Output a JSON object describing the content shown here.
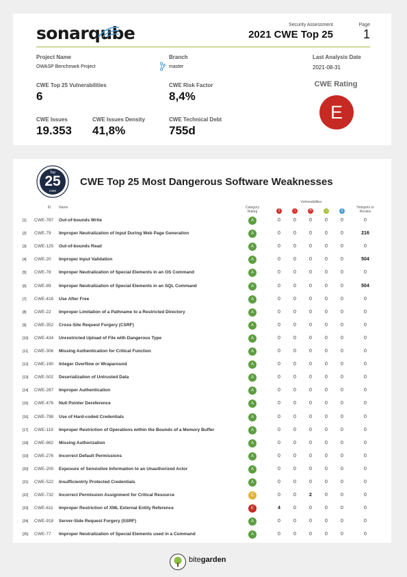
{
  "header": {
    "logo_text": "sonarqube",
    "report_subtitle": "Security Assessment",
    "report_title": "2021 CWE Top 25",
    "page_label": "Page",
    "page_number": "1"
  },
  "project": {
    "name_label": "Project Name",
    "name": "OWASP Benchmark Project",
    "branch_label": "Branch",
    "branch": "master",
    "analysis_label": "Last Analysis Date",
    "analysis_date": "2021-08-31"
  },
  "metrics": {
    "vuln_label": "CWE Top 25 Vulnerabilities",
    "vuln_value": "6",
    "risk_label": "CWE Risk Factor",
    "risk_value": "8,4%",
    "issues_label": "CWE Issues",
    "issues_value": "19.353",
    "density_label": "CWE Issues Density",
    "density_value": "41,8%",
    "debt_label": "CWE Technical Debt",
    "debt_value": "755d",
    "rating_label": "CWE Rating",
    "rating_value": "E",
    "rating_color": "#c62a22"
  },
  "table": {
    "badge_top": "Top",
    "badge_num": "25",
    "badge_bottom": "CWE",
    "title": "CWE Top 25 Most Dangerous Software Weaknesses",
    "col_id": "ID",
    "col_name": "Name",
    "col_category": "Category Rating",
    "col_vulnerabilities": "Vulnerabilities",
    "col_hotspots": "Hotspots to Review",
    "severity_icons": [
      {
        "name": "blocker-icon",
        "glyph": "!",
        "color": "#c0392b"
      },
      {
        "name": "critical-icon",
        "glyph": "↑",
        "color": "#d9342b"
      },
      {
        "name": "major-icon",
        "glyph": "^",
        "color": "#d9342b"
      },
      {
        "name": "minor-icon",
        "glyph": "↓",
        "color": "#a7c33a"
      },
      {
        "name": "info-icon",
        "glyph": "i",
        "color": "#4b9fd5"
      }
    ],
    "rows": [
      {
        "num": "[1]",
        "id": "CWE-787",
        "name": "Out-of-bounds Write",
        "rating": "A",
        "v": [
          "0",
          "0",
          "0",
          "0",
          "0"
        ],
        "hot": "0"
      },
      {
        "num": "[2]",
        "id": "CWE-79",
        "name": "Improper Neutralization of Input During Web Page Generation",
        "rating": "A",
        "v": [
          "0",
          "0",
          "0",
          "0",
          "0"
        ],
        "hot": "216"
      },
      {
        "num": "[3]",
        "id": "CWE-125",
        "name": "Out-of-bounds Read",
        "rating": "A",
        "v": [
          "0",
          "0",
          "0",
          "0",
          "0"
        ],
        "hot": "0"
      },
      {
        "num": "[4]",
        "id": "CWE-20",
        "name": "Improper Input Validation",
        "rating": "A",
        "v": [
          "0",
          "0",
          "0",
          "0",
          "0"
        ],
        "hot": "504"
      },
      {
        "num": "[5]",
        "id": "CWE-78",
        "name": "Improper Neutralization of Special Elements in an OS Command",
        "rating": "A",
        "v": [
          "0",
          "0",
          "0",
          "0",
          "0"
        ],
        "hot": "0"
      },
      {
        "num": "[6]",
        "id": "CWE-89",
        "name": "Improper Neutralization of Special Elements in an SQL Command",
        "rating": "A",
        "v": [
          "0",
          "0",
          "0",
          "0",
          "0"
        ],
        "hot": "504"
      },
      {
        "num": "[7]",
        "id": "CWE-416",
        "name": "Use After Free",
        "rating": "A",
        "v": [
          "0",
          "0",
          "0",
          "0",
          "0"
        ],
        "hot": "0"
      },
      {
        "num": "[8]",
        "id": "CWE-22",
        "name": "Improper Limitation of a Pathname to a Restricted Directory",
        "rating": "A",
        "v": [
          "0",
          "0",
          "0",
          "0",
          "0"
        ],
        "hot": "0"
      },
      {
        "num": "[9]",
        "id": "CWE-352",
        "name": "Cross-Site Request Forgery (CSRF)",
        "rating": "A",
        "v": [
          "0",
          "0",
          "0",
          "0",
          "0"
        ],
        "hot": "0"
      },
      {
        "num": "[10]",
        "id": "CWE-434",
        "name": "Unrestricted Upload of File with Dangerous Type",
        "rating": "A",
        "v": [
          "0",
          "0",
          "0",
          "0",
          "0"
        ],
        "hot": "0"
      },
      {
        "num": "[11]",
        "id": "CWE-306",
        "name": "Missing Authentication for Critical Function",
        "rating": "A",
        "v": [
          "0",
          "0",
          "0",
          "0",
          "0"
        ],
        "hot": "0"
      },
      {
        "num": "[12]",
        "id": "CWE-190",
        "name": "Integer Overflow or Wraparound",
        "rating": "A",
        "v": [
          "0",
          "0",
          "0",
          "0",
          "0"
        ],
        "hot": "0"
      },
      {
        "num": "[13]",
        "id": "CWE-502",
        "name": "Deserialization of Untrusted Data",
        "rating": "A",
        "v": [
          "0",
          "0",
          "0",
          "0",
          "0"
        ],
        "hot": "0"
      },
      {
        "num": "[14]",
        "id": "CWE-287",
        "name": "Improper Authentication",
        "rating": "A",
        "v": [
          "0",
          "0",
          "0",
          "0",
          "0"
        ],
        "hot": "0"
      },
      {
        "num": "[15]",
        "id": "CWE-476",
        "name": "Null Pointer Dereference",
        "rating": "A",
        "v": [
          "0",
          "0",
          "0",
          "0",
          "0"
        ],
        "hot": "0"
      },
      {
        "num": "[16]",
        "id": "CWE-798",
        "name": "Use of Hard-coded Credentials",
        "rating": "A",
        "v": [
          "0",
          "0",
          "0",
          "0",
          "0"
        ],
        "hot": "0"
      },
      {
        "num": "[17]",
        "id": "CWE-119",
        "name": "Improper Restriction of Operations within the Bounds of a Memory Buffer",
        "rating": "A",
        "v": [
          "0",
          "0",
          "0",
          "0",
          "0"
        ],
        "hot": "0"
      },
      {
        "num": "[18]",
        "id": "CWE-862",
        "name": "Missing Authorization",
        "rating": "A",
        "v": [
          "0",
          "0",
          "0",
          "0",
          "0"
        ],
        "hot": "0"
      },
      {
        "num": "[19]",
        "id": "CWE-276",
        "name": "Incorrect Default Permissions",
        "rating": "A",
        "v": [
          "0",
          "0",
          "0",
          "0",
          "0"
        ],
        "hot": "0"
      },
      {
        "num": "[20]",
        "id": "CWE-200",
        "name": "Exposure of Sensistive Information to an Unauthorized Actor",
        "rating": "A",
        "v": [
          "0",
          "0",
          "0",
          "0",
          "0"
        ],
        "hot": "0"
      },
      {
        "num": "[21]",
        "id": "CWE-522",
        "name": "Insufficientrly Protected Credentials",
        "rating": "A",
        "v": [
          "0",
          "0",
          "0",
          "0",
          "0"
        ],
        "hot": "0"
      },
      {
        "num": "[22]",
        "id": "CWE-732",
        "name": "Incorrect Permission Assignment for Critical Resource",
        "rating": "C",
        "v": [
          "0",
          "0",
          "2",
          "0",
          "0"
        ],
        "hot": "0"
      },
      {
        "num": "[23]",
        "id": "CWE-611",
        "name": "Improper Restriction of XML External Entity Reference",
        "rating": "E",
        "v": [
          "4",
          "0",
          "0",
          "0",
          "0"
        ],
        "hot": "0"
      },
      {
        "num": "[24]",
        "id": "CWE-918",
        "name": "Server-Side Request Forgery (SSRF)",
        "rating": "A",
        "v": [
          "0",
          "0",
          "0",
          "0",
          "0"
        ],
        "hot": "0"
      },
      {
        "num": "[25]",
        "id": "CWE-77",
        "name": "Improper Neutralization of Special Elements used in a Command",
        "rating": "A",
        "v": [
          "0",
          "0",
          "0",
          "0",
          "0"
        ],
        "hot": "0"
      }
    ]
  },
  "rating_colors": {
    "A": "#5c9e3f",
    "C": "#e0b23a",
    "E": "#c62a22"
  },
  "footer": {
    "brand_part1": "bite",
    "brand_part2": "garden"
  }
}
